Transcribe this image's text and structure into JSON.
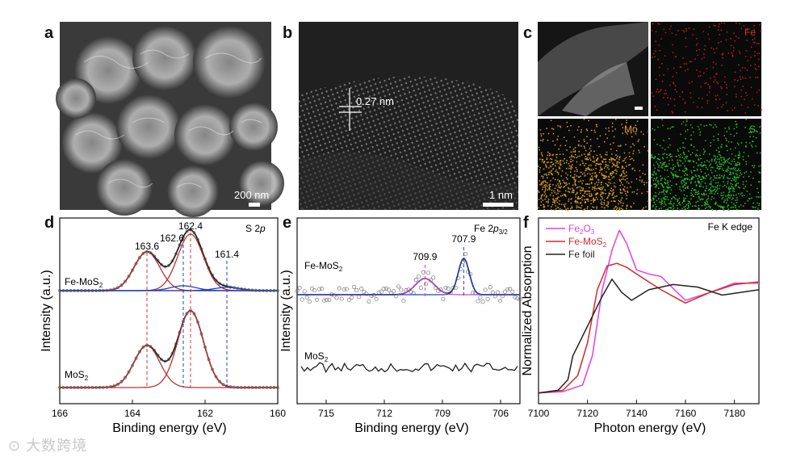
{
  "panels": {
    "a": {
      "letter": "a",
      "scale_label": "200 nm"
    },
    "b": {
      "letter": "b",
      "scale_label": "1 nm",
      "annotation": "0.27 nm"
    },
    "c": {
      "letter": "c",
      "labels": [
        "Fe",
        "Mo",
        "S"
      ]
    },
    "d": {
      "letter": "d"
    },
    "e": {
      "letter": "e"
    },
    "f": {
      "letter": "f"
    }
  },
  "watermark": "大数跨境",
  "chart_data": [
    {
      "type": "line",
      "panel": "d",
      "title": "S 2p",
      "xlabel": "Binding energy (eV)",
      "ylabel": "Intensity (a.u.)",
      "xlim": [
        166,
        160
      ],
      "x_reversed": true,
      "xticks": [
        166,
        164,
        162,
        160
      ],
      "series": [
        {
          "name": "Fe-MoS2",
          "peaks_eV": [
            163.6,
            162.6,
            162.4,
            161.4
          ]
        },
        {
          "name": "MoS2",
          "peaks_eV": [
            163.6,
            162.4
          ]
        }
      ],
      "annotations": [
        "163.6",
        "162.6",
        "162.4",
        "161.4"
      ]
    },
    {
      "type": "scatter",
      "panel": "e",
      "title": "Fe 2p3/2",
      "xlabel": "Binding energy (eV)",
      "ylabel": "Intensity (a.u.)",
      "xlim": [
        716.5,
        705
      ],
      "x_reversed": true,
      "xticks": [
        715,
        712,
        709,
        706
      ],
      "series": [
        {
          "name": "Fe-MoS2",
          "peaks_eV": [
            709.9,
            707.9
          ]
        },
        {
          "name": "MoS2",
          "peaks_eV": []
        }
      ],
      "annotations": [
        "709.9",
        "707.9"
      ]
    },
    {
      "type": "line",
      "panel": "f",
      "title": "Fe K edge",
      "xlabel": "Photon energy (eV)",
      "ylabel": "Normalized Absorption",
      "xlim": [
        7100,
        7190
      ],
      "xticks": [
        7100,
        7120,
        7140,
        7160,
        7180
      ],
      "series": [
        {
          "name": "Fe2O3",
          "color": "#e040e0",
          "x": [
            7100,
            7110,
            7118,
            7122,
            7126,
            7130,
            7133,
            7136,
            7140,
            7145,
            7150,
            7160,
            7170,
            7180,
            7190
          ],
          "y": [
            0.02,
            0.03,
            0.08,
            0.3,
            0.8,
            1.1,
            1.25,
            1.15,
            0.95,
            0.92,
            0.9,
            0.72,
            0.78,
            0.85,
            0.85
          ]
        },
        {
          "name": "Fe-MoS2",
          "color": "#d62828",
          "x": [
            7100,
            7110,
            7116,
            7120,
            7124,
            7128,
            7132,
            7136,
            7140,
            7145,
            7150,
            7160,
            7170,
            7180,
            7190
          ],
          "y": [
            0.02,
            0.04,
            0.15,
            0.4,
            0.8,
            0.98,
            1.0,
            0.97,
            0.92,
            0.86,
            0.8,
            0.7,
            0.78,
            0.84,
            0.86
          ]
        },
        {
          "name": "Fe foil",
          "color": "#222222",
          "x": [
            7100,
            7108,
            7112,
            7114,
            7118,
            7122,
            7126,
            7130,
            7134,
            7138,
            7145,
            7155,
            7165,
            7175,
            7190
          ],
          "y": [
            0.02,
            0.04,
            0.12,
            0.3,
            0.45,
            0.6,
            0.75,
            0.88,
            0.78,
            0.72,
            0.8,
            0.84,
            0.82,
            0.76,
            0.8
          ]
        }
      ],
      "legend": [
        "Fe2O3",
        "Fe-MoS2",
        "Fe foil"
      ]
    }
  ]
}
